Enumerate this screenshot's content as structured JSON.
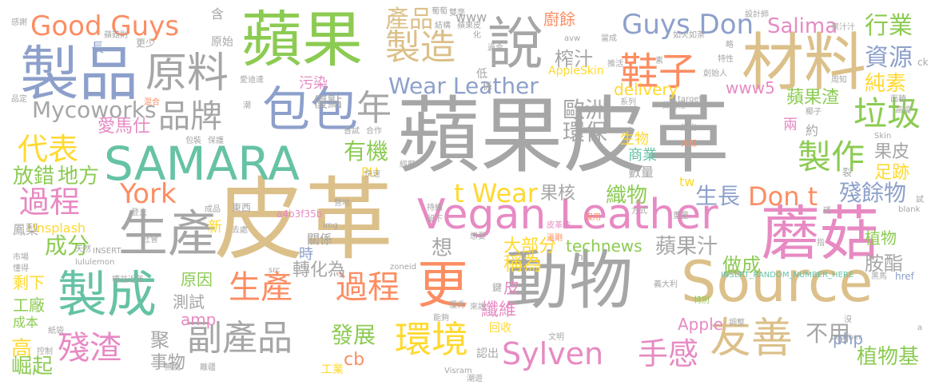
{
  "palette": {
    "gray": "#a6a6a6",
    "tan": "#dcc08a",
    "green": "#8ccb52",
    "blue": "#8da0cb",
    "pink": "#e78ac3",
    "orange": "#fc8d62",
    "teal": "#66c2a5",
    "yellow": "#ffd92f"
  },
  "words": [
    {
      "text": "蘋果皮革",
      "color": "gray"
    },
    {
      "text": "皮革",
      "color": "tan"
    },
    {
      "text": "動物",
      "color": "gray"
    },
    {
      "text": "Source",
      "color": "tan"
    },
    {
      "text": "蘑菇",
      "color": "pink"
    },
    {
      "text": "Vegan Leather",
      "color": "pink"
    },
    {
      "text": "蘋果",
      "color": "green"
    },
    {
      "text": "製品",
      "color": "blue"
    },
    {
      "text": "材料",
      "color": "tan"
    },
    {
      "text": "SAMARA",
      "color": "teal"
    },
    {
      "text": "說",
      "color": "gray"
    },
    {
      "text": "包包",
      "color": "blue"
    },
    {
      "text": "製成",
      "color": "teal"
    },
    {
      "text": "更",
      "color": "orange"
    },
    {
      "text": "生產",
      "color": "gray"
    },
    {
      "text": "原料",
      "color": "gray"
    },
    {
      "text": "友善",
      "color": "tan"
    },
    {
      "text": "鞋子",
      "color": "orange"
    },
    {
      "text": "製造",
      "color": "tan"
    },
    {
      "text": "Good Guys",
      "color": "orange"
    },
    {
      "text": "Guys Don",
      "color": "blue"
    },
    {
      "text": "Sylven",
      "color": "pink"
    },
    {
      "text": "環境",
      "color": "yellow"
    },
    {
      "text": "過程",
      "color": "orange"
    },
    {
      "text": "生產",
      "color": "orange"
    },
    {
      "text": "副產品",
      "color": "gray"
    },
    {
      "text": "製作",
      "color": "green"
    },
    {
      "text": "垃圾",
      "color": "green"
    },
    {
      "text": "品牌",
      "color": "gray"
    },
    {
      "text": "年",
      "color": "gray"
    },
    {
      "text": "代表",
      "color": "yellow"
    },
    {
      "text": "過程",
      "color": "pink"
    },
    {
      "text": "York",
      "color": "orange"
    },
    {
      "text": "t Wear",
      "color": "yellow"
    },
    {
      "text": "Don t",
      "color": "orange"
    },
    {
      "text": "殘渣",
      "color": "pink"
    },
    {
      "text": "手感",
      "color": "pink"
    },
    {
      "text": "Wear Leather",
      "color": "blue"
    },
    {
      "text": "產品",
      "color": "tan"
    },
    {
      "text": "行業",
      "color": "green"
    },
    {
      "text": "資源",
      "color": "blue"
    },
    {
      "text": "純素",
      "color": "yellow"
    },
    {
      "text": "Mycoworks",
      "color": "gray"
    },
    {
      "text": "Salima",
      "color": "pink"
    },
    {
      "text": "歐洲",
      "color": "gray"
    },
    {
      "text": "環保",
      "color": "gray"
    },
    {
      "text": "蘋果渣",
      "color": "green"
    },
    {
      "text": "有機",
      "color": "green"
    },
    {
      "text": "織物",
      "color": "green"
    },
    {
      "text": "生長",
      "color": "blue"
    },
    {
      "text": "殘餘物",
      "color": "blue"
    },
    {
      "text": "放錯",
      "color": "green"
    },
    {
      "text": "地方",
      "color": "green"
    },
    {
      "text": "成分",
      "color": "green"
    },
    {
      "text": "榨汁",
      "color": "gray"
    },
    {
      "text": "蘋果汁",
      "color": "gray"
    },
    {
      "text": "做成",
      "color": "green"
    },
    {
      "text": "胺酯",
      "color": "gray"
    },
    {
      "text": "植物",
      "color": "green"
    },
    {
      "text": "植物基",
      "color": "green"
    },
    {
      "text": "不用",
      "color": "gray"
    },
    {
      "text": "發展",
      "color": "green"
    },
    {
      "text": "纖維",
      "color": "pink"
    },
    {
      "text": "高",
      "color": "yellow"
    },
    {
      "text": "崛起",
      "color": "green"
    },
    {
      "text": "聚",
      "color": "gray"
    },
    {
      "text": "事物",
      "color": "gray"
    },
    {
      "text": "愛馬仕",
      "color": "pink"
    },
    {
      "text": "想",
      "color": "gray"
    },
    {
      "text": "稱為",
      "color": "yellow"
    },
    {
      "text": "大部分",
      "color": "yellow"
    },
    {
      "text": "technews",
      "color": "green"
    },
    {
      "text": "果核",
      "color": "gray"
    },
    {
      "text": "果皮",
      "color": "gray"
    },
    {
      "text": "足跡",
      "color": "yellow"
    },
    {
      "text": "轉化為",
      "color": "gray"
    },
    {
      "text": "原因",
      "color": "green"
    },
    {
      "text": "剩下",
      "color": "yellow"
    },
    {
      "text": "工廠",
      "color": "green"
    },
    {
      "text": "成本",
      "color": "green"
    },
    {
      "text": "測試",
      "color": "gray"
    },
    {
      "text": "amp",
      "color": "pink"
    },
    {
      "text": "cb",
      "color": "orange"
    },
    {
      "text": "Apple",
      "color": "pink"
    },
    {
      "text": "php",
      "color": "blue"
    },
    {
      "text": "delivery",
      "color": "yellow"
    },
    {
      "text": "www5",
      "color": "pink"
    },
    {
      "text": "www",
      "color": "gray"
    },
    {
      "text": "廚餘",
      "color": "orange"
    },
    {
      "text": "Unsplash",
      "color": "yellow"
    },
    {
      "text": "鳳梨",
      "color": "gray"
    },
    {
      "text": "新",
      "color": "yellow"
    },
    {
      "text": "PU",
      "color": "yellow"
    },
    {
      "text": "tw",
      "color": "yellow"
    },
    {
      "text": "時",
      "color": "blue"
    },
    {
      "text": "皮",
      "color": "pink"
    },
    {
      "text": "生物",
      "color": "yellow"
    },
    {
      "text": "商業",
      "color": "teal"
    },
    {
      "text": "數量",
      "color": "gray"
    },
    {
      "text": "污染",
      "color": "pink"
    },
    {
      "text": "優點",
      "color": "gray"
    },
    {
      "text": "兩",
      "color": "pink"
    },
    {
      "text": "約",
      "color": "gray"
    },
    {
      "text": "長",
      "color": "blue"
    },
    {
      "text": "AppleSkin",
      "color": "yellow"
    },
    {
      "text": "關係",
      "color": "gray"
    },
    {
      "text": "a4b3f35b",
      "color": "pink"
    },
    {
      "text": "含",
      "color": "gray"
    },
    {
      "text": "原始",
      "color": "gray"
    },
    {
      "text": "更少",
      "color": "gray"
    },
    {
      "text": "低",
      "color": "gray"
    },
    {
      "text": "係",
      "color": "gray"
    },
    {
      "text": "東西",
      "color": "gray"
    },
    {
      "text": "成品",
      "color": "gray"
    },
    {
      "text": "去處",
      "color": "gray"
    },
    {
      "text": "img",
      "color": "gray"
    },
    {
      "text": "zoneid",
      "color": "gray"
    },
    {
      "text": "INSERT_RANDOM_NUMBER_HERE",
      "color": "teal"
    },
    {
      "text": "href",
      "color": "blue"
    },
    {
      "text": "lululemon",
      "color": "gray"
    },
    {
      "text": "src",
      "color": "gray"
    },
    {
      "text": "Visram",
      "color": "gray"
    },
    {
      "text": "INSERT",
      "color": "gray"
    },
    {
      "text": "Leather",
      "color": "gray"
    },
    {
      "text": "Skin",
      "color": "gray"
    },
    {
      "text": "ck",
      "color": "gray"
    },
    {
      "text": "target",
      "color": "gray"
    },
    {
      "text": "blank",
      "color": "gray"
    },
    {
      "text": "avw",
      "color": "gray"
    },
    {
      "text": "n",
      "color": "gray"
    },
    {
      "text": "設計師",
      "color": "gray"
    },
    {
      "text": "果汁汁",
      "color": "gray"
    },
    {
      "text": "如火如荼",
      "color": "gray"
    },
    {
      "text": "特性",
      "color": "gray"
    },
    {
      "text": "周知",
      "color": "gray"
    },
    {
      "text": "創始人",
      "color": "gray"
    },
    {
      "text": "首圖裡",
      "color": "gray"
    },
    {
      "text": "推出",
      "color": "gray"
    },
    {
      "text": "椰子",
      "color": "gray"
    },
    {
      "text": "大紅",
      "color": "orange"
    },
    {
      "text": "裂",
      "color": "gray"
    },
    {
      "text": "碼",
      "color": "gray"
    },
    {
      "text": "試",
      "color": "gray"
    },
    {
      "text": "方式",
      "color": "gray"
    },
    {
      "text": "重量",
      "color": "gray"
    },
    {
      "text": "沒用",
      "color": "orange"
    },
    {
      "text": "皮革味",
      "color": "pink"
    },
    {
      "text": "過剛",
      "color": "orange"
    },
    {
      "text": "想要",
      "color": "gray"
    },
    {
      "text": "指",
      "color": "gray"
    },
    {
      "text": "黑馬",
      "color": "gray"
    },
    {
      "text": "義大利",
      "color": "gray"
    },
    {
      "text": "特別",
      "color": "green"
    },
    {
      "text": "回收",
      "color": "yellow"
    },
    {
      "text": "認出",
      "color": "gray"
    },
    {
      "text": "工業",
      "color": "yellow"
    },
    {
      "text": "文明",
      "color": "gray"
    },
    {
      "text": "調整",
      "color": "gray"
    },
    {
      "text": "沒",
      "color": "gray"
    },
    {
      "text": "優秀",
      "color": "gray"
    },
    {
      "text": "來說",
      "color": "gray"
    },
    {
      "text": "鍵",
      "color": "gray"
    },
    {
      "text": "持續",
      "color": "gray"
    },
    {
      "text": "留下",
      "color": "gray"
    },
    {
      "text": "營地",
      "color": "gray"
    },
    {
      "text": "快速",
      "color": "gray"
    },
    {
      "text": "合作",
      "color": "gray"
    },
    {
      "text": "嘗試",
      "color": "gray"
    },
    {
      "text": "包裝",
      "color": "gray"
    },
    {
      "text": "保護",
      "color": "gray"
    },
    {
      "text": "混合",
      "color": "orange"
    },
    {
      "text": "潮",
      "color": "gray"
    },
    {
      "text": "系列",
      "color": "gray"
    },
    {
      "text": "市場",
      "color": "gray"
    },
    {
      "text": "懂得",
      "color": "gray"
    },
    {
      "text": "控制",
      "color": "gray"
    },
    {
      "text": "紙袋",
      "color": "gray"
    },
    {
      "text": "權益",
      "color": "gray"
    },
    {
      "text": "近年",
      "color": "gray"
    },
    {
      "text": "社會",
      "color": "gray"
    },
    {
      "text": "天然",
      "color": "gray"
    },
    {
      "text": "登夫",
      "color": "gray"
    },
    {
      "text": "葡萄",
      "color": "gray"
    },
    {
      "text": "結構",
      "color": "gray"
    },
    {
      "text": "化",
      "color": "gray"
    },
    {
      "text": "過合",
      "color": "gray"
    },
    {
      "text": "蘋果皮",
      "color": "gray"
    },
    {
      "text": "當成",
      "color": "gray"
    },
    {
      "text": "推活",
      "color": "gray"
    },
    {
      "text": "愛迪達",
      "color": "gray"
    },
    {
      "text": "素",
      "color": "gray"
    },
    {
      "text": "略",
      "color": "gray"
    },
    {
      "text": "蘋菇則",
      "color": "gray"
    },
    {
      "text": "無關",
      "color": "gray"
    },
    {
      "text": "離疆",
      "color": "gray"
    },
    {
      "text": "雙毫",
      "color": "gray"
    },
    {
      "text": "能夠",
      "color": "gray"
    },
    {
      "text": "潮遊",
      "color": "gray"
    },
    {
      "text": "經歷",
      "color": "gray"
    },
    {
      "text": "面積",
      "color": "gray"
    },
    {
      "text": "高檔",
      "color": "gray"
    },
    {
      "text": "a",
      "color": "gray"
    },
    {
      "text": "感謝",
      "color": "gray"
    },
    {
      "text": "品定",
      "color": "gray"
    }
  ]
}
